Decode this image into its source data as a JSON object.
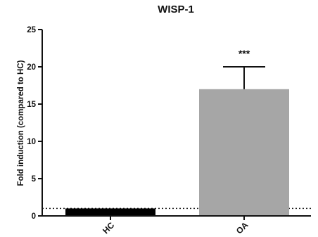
{
  "chart_data": {
    "type": "bar",
    "title": "WISP-1",
    "xlabel": "",
    "ylabel": "Fold induction (compared to HC)",
    "categories": [
      "HC",
      "OA"
    ],
    "values": [
      1.0,
      17.0
    ],
    "error_upper": [
      0,
      3.0
    ],
    "bar_colors": [
      "#000000",
      "#a6a6a6"
    ],
    "ylim": [
      0,
      25
    ],
    "yticks": [
      0,
      5,
      10,
      15,
      20,
      25
    ],
    "reference_line": {
      "y": 1,
      "style": "dotted"
    },
    "annotations": [
      {
        "category": "OA",
        "text": "***"
      }
    ],
    "grid": false,
    "legend": "none"
  }
}
